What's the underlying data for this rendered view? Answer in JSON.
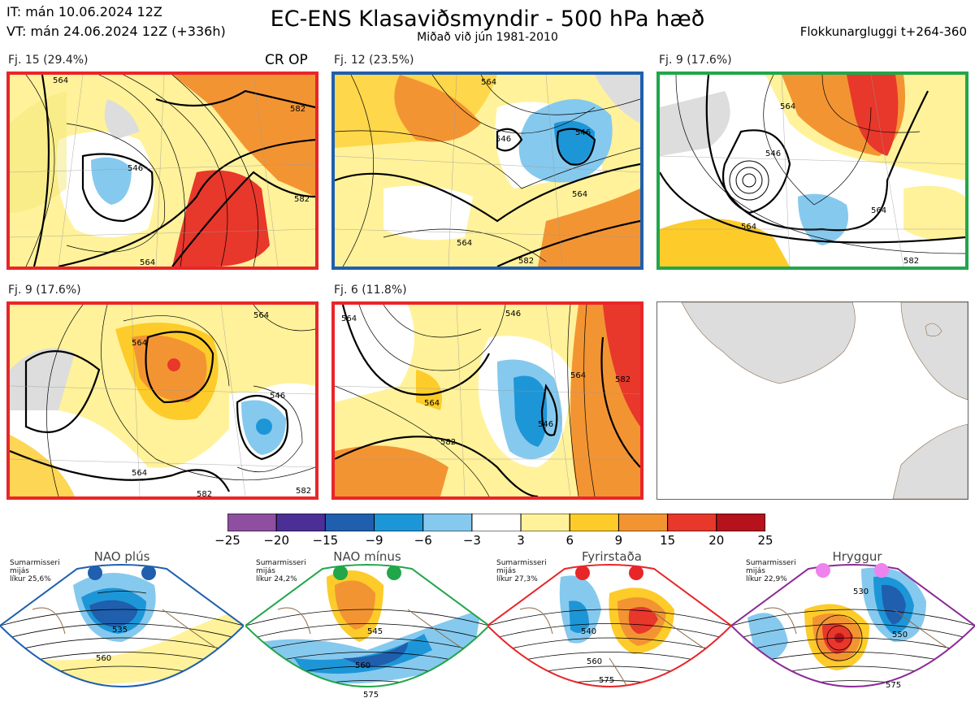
{
  "header": {
    "it_line": "IT: mán 10.06.2024 12Z",
    "vt_line": "VT: mán 24.06.2024 12Z  (+336h)",
    "title": "EC-ENS Klasaviðsmyndir - 500 hPa hæð",
    "subtitle": "Miðað við jún 1981-2010",
    "window": "Flokkunargluggi t+264-360"
  },
  "clusters": [
    {
      "label": "Fj. 15 (29.4%)",
      "frame_color": "#e8262a",
      "tag": "CR OP",
      "contours": [
        "564",
        "546",
        "582",
        "564",
        "582"
      ]
    },
    {
      "label": "Fj. 12 (23.5%)",
      "frame_color": "#1f5fae",
      "contours": [
        "564",
        "546",
        "546",
        "564",
        "564",
        "582"
      ]
    },
    {
      "label": "Fj. 9 (17.6%)",
      "frame_color": "#21a64a",
      "contours": [
        "564",
        "546",
        "564",
        "564",
        "582"
      ]
    },
    {
      "label": "Fj. 9 (17.6%)",
      "frame_color": "#e8262a",
      "contours": [
        "564",
        "564",
        "546",
        "564",
        "582",
        "582"
      ]
    },
    {
      "label": "Fj. 6 (11.8%)",
      "frame_color": "#e8262a",
      "contours": [
        "546",
        "564",
        "564",
        "546",
        "582",
        "564",
        "582"
      ]
    }
  ],
  "colorbar": {
    "ticks": [
      "−25",
      "−20",
      "−15",
      "−9",
      "−6",
      "−3",
      "3",
      "6",
      "9",
      "15",
      "20",
      "25"
    ],
    "colors": [
      "#8e4fa0",
      "#4b2f96",
      "#1f5fae",
      "#1d96d8",
      "#86c9ee",
      "#ffffff",
      "#fff29a",
      "#fdcc2a",
      "#f39433",
      "#e8372b",
      "#b5121b"
    ]
  },
  "regimes": [
    {
      "title": "NAO plús",
      "info": [
        "Sumarmisseri",
        "mijás",
        "líkur 25,6%"
      ],
      "color": "#1f5fae",
      "contours": [
        "535",
        "560"
      ]
    },
    {
      "title": "NAO mínus",
      "info": [
        "Sumarmisseri",
        "mijás",
        "líkur 24,2%"
      ],
      "color": "#21a64a",
      "contours": [
        "545",
        "560",
        "575"
      ]
    },
    {
      "title": "Fyrirstaða",
      "info": [
        "Sumarmisseri",
        "mijás",
        "líkur 27,3%"
      ],
      "color": "#e8262a",
      "contours": [
        "540",
        "560",
        "575"
      ]
    },
    {
      "title": "Hryggur",
      "info": [
        "Sumarmisseri",
        "mijás",
        "líkur 22,9%"
      ],
      "color": "#8b2a97",
      "dot_color": "#ee82ee",
      "contours": [
        "530",
        "550",
        "575"
      ]
    }
  ]
}
